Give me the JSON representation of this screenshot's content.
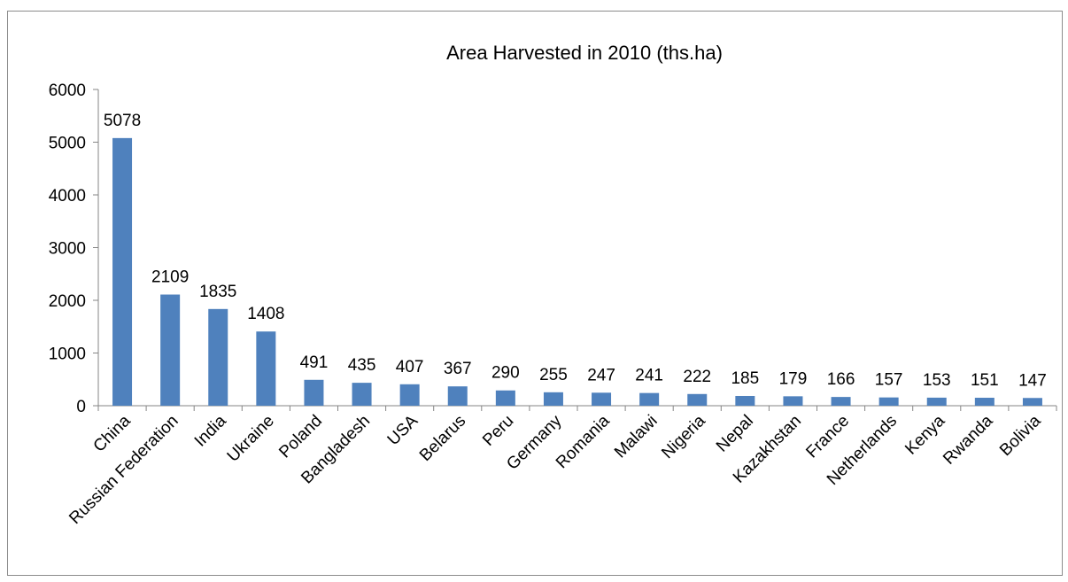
{
  "chart_data": {
    "type": "bar",
    "title": "Area Harvested in 2010 (ths.ha)",
    "xlabel": "",
    "ylabel": "",
    "ylim": [
      0,
      6000
    ],
    "yticks": [
      0,
      1000,
      2000,
      3000,
      4000,
      5000,
      6000
    ],
    "grid": false,
    "legend": "none",
    "bar_color": "#4f81bd",
    "categories": [
      "China",
      "Russian Federation",
      "India",
      "Ukraine",
      "Poland",
      "Bangladesh",
      "USA",
      "Belarus",
      "Peru",
      "Germany",
      "Romania",
      "Malawi",
      "Nigeria",
      "Nepal",
      "Kazakhstan",
      "France",
      "Netherlands",
      "Kenya",
      "Rwanda",
      "Bolivia"
    ],
    "values": [
      5078,
      2109,
      1835,
      1408,
      491,
      435,
      407,
      367,
      290,
      255,
      247,
      241,
      222,
      185,
      179,
      166,
      157,
      153,
      151,
      147
    ]
  }
}
